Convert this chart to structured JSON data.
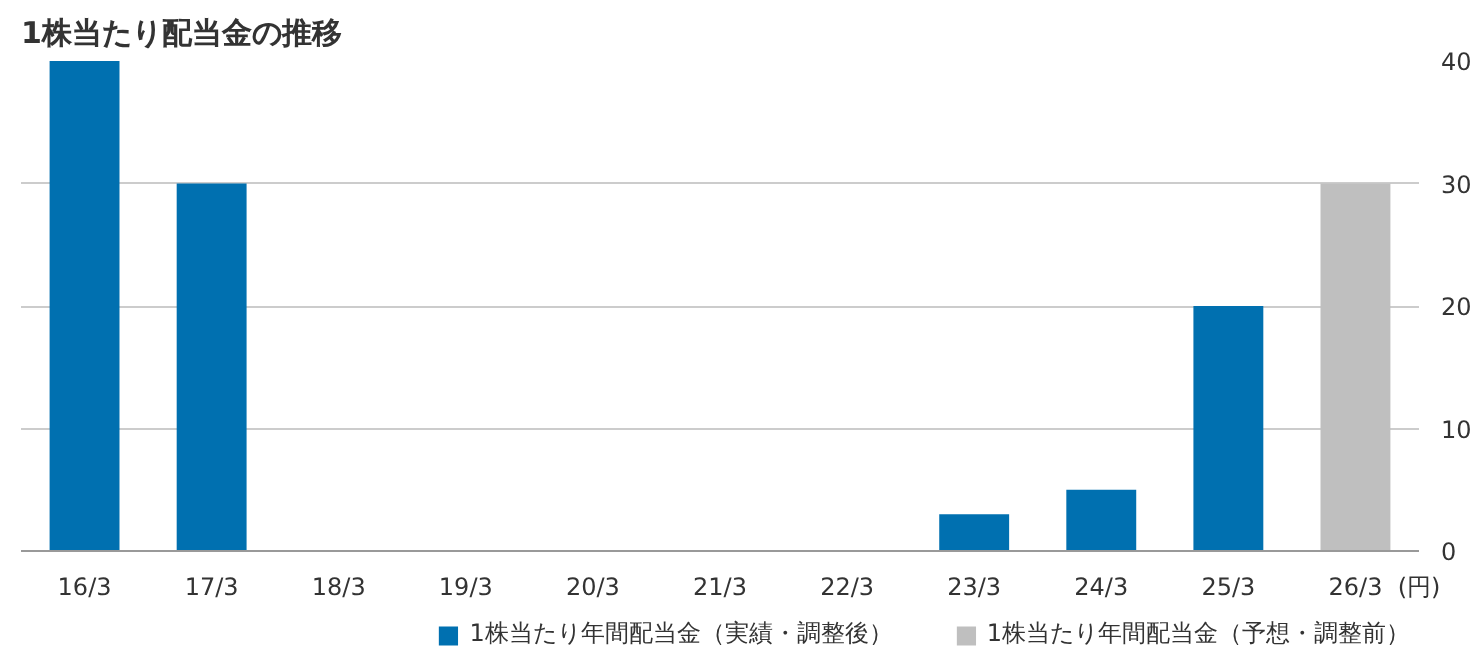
{
  "chart_data": {
    "type": "bar",
    "title": "1株当たり配当金の推移",
    "ylabel": "(円)",
    "categories": [
      "16/3",
      "17/3",
      "18/3",
      "19/3",
      "20/3",
      "21/3",
      "22/3",
      "23/3",
      "24/3",
      "25/3",
      "26/3"
    ],
    "series": [
      {
        "name": "1株当たり年間配当金（実績・調整後）",
        "color": "#0070b0",
        "values": [
          40,
          30,
          null,
          null,
          null,
          null,
          null,
          3,
          5,
          20,
          null
        ]
      },
      {
        "name": "1株当たり年間配当金（予想・調整前）",
        "color": "#bfbfbf",
        "values": [
          null,
          null,
          null,
          null,
          null,
          null,
          null,
          null,
          null,
          null,
          30
        ]
      }
    ],
    "ylim": [
      0,
      40
    ],
    "yticks": [
      0,
      10,
      20,
      30,
      40
    ],
    "grid": "y",
    "legend": "bottom"
  }
}
